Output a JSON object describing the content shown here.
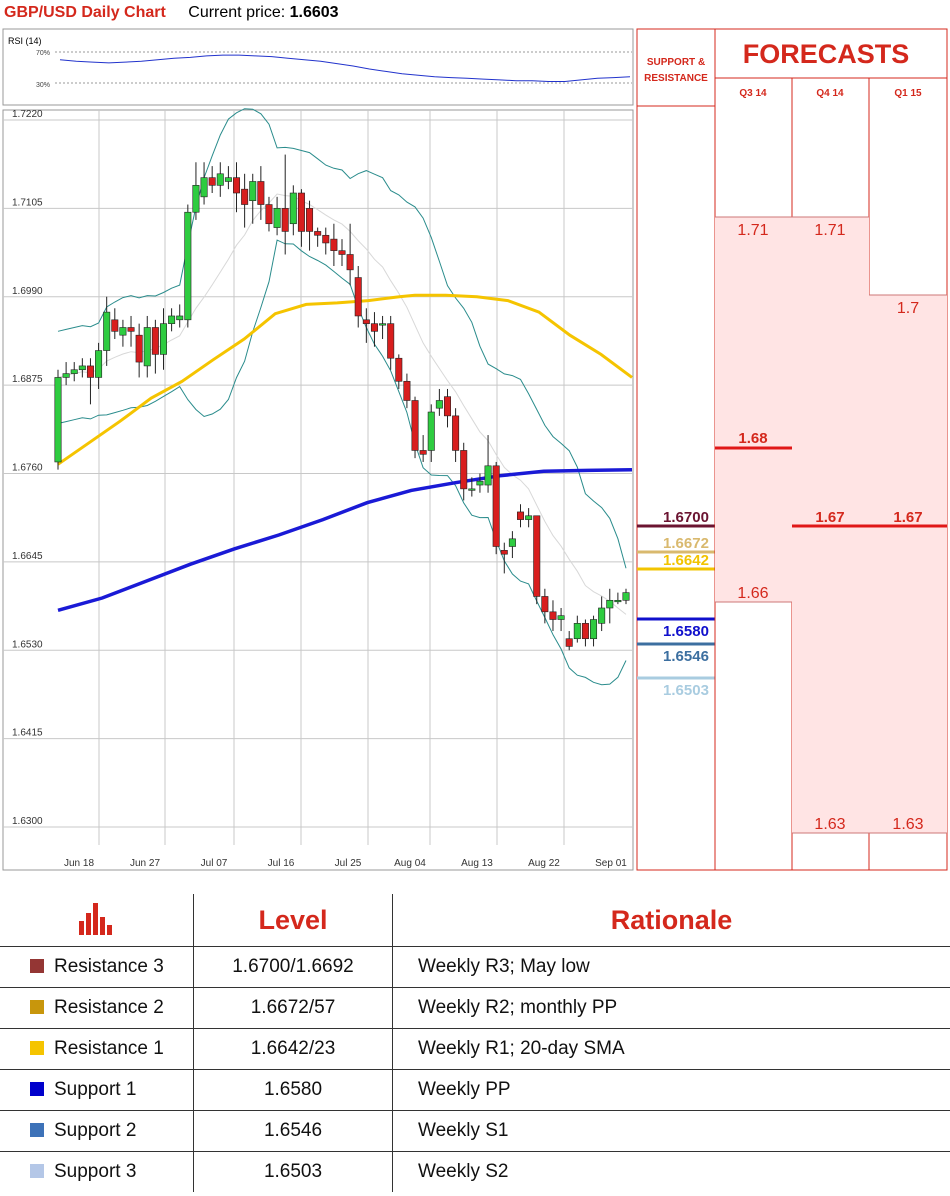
{
  "header": {
    "title": "GBP/USD Daily Chart",
    "current_price_label": "Current price:",
    "current_price_value": "1.6603"
  },
  "rsi": {
    "label": "RSI (14)",
    "level_70": "70%",
    "level_30": "30%"
  },
  "forecasts": {
    "title": "FORECASTS",
    "sr_label_line1": "SUPPORT &",
    "sr_label_line2": "RESISTANCE",
    "columns": [
      "Q3 14",
      "Q4 14",
      "Q1 15"
    ],
    "q3": {
      "high": "1.71",
      "mid": "1.68",
      "low": "1.66"
    },
    "q4": {
      "high": "1.71",
      "mid": "1.67",
      "low": "1.63"
    },
    "q1": {
      "high": "1.7",
      "mid": "1.67",
      "low": "1.63"
    }
  },
  "sr_levels": [
    {
      "value": "1.6700",
      "color": "#6b1431"
    },
    {
      "value": "1.6672",
      "color": "#d9b96e"
    },
    {
      "value": "1.6642",
      "color": "#f2c400"
    },
    {
      "value": "1.6580",
      "color": "#1010cc"
    },
    {
      "value": "1.6546",
      "color": "#3c6fa0"
    },
    {
      "value": "1.6503",
      "color": "#a9cce0"
    }
  ],
  "table": {
    "level_header": "Level",
    "rationale_header": "Rationale",
    "rows": [
      {
        "name": "Resistance 3",
        "level": "1.6700/1.6692",
        "rationale": "Weekly R3; May low",
        "color": "#943634"
      },
      {
        "name": "Resistance 2",
        "level": "1.6672/57",
        "rationale": "Weekly R2; monthly PP",
        "color": "#c8960c"
      },
      {
        "name": "Resistance 1",
        "level": "1.6642/23",
        "rationale": "Weekly R1; 20-day SMA",
        "color": "#f5c400"
      },
      {
        "name": "Support 1",
        "level": "1.6580",
        "rationale": "Weekly PP",
        "color": "#0000cc"
      },
      {
        "name": "Support 2",
        "level": "1.6546",
        "rationale": "Weekly S1",
        "color": "#3d72b8"
      },
      {
        "name": "Support 3",
        "level": "1.6503",
        "rationale": "Weekly S2",
        "color": "#b4c7e7"
      }
    ]
  },
  "chart_data": {
    "type": "candlestick",
    "ylim": [
      1.63,
      1.722
    ],
    "y_ticks": [
      "1.7220",
      "1.7105",
      "1.6990",
      "1.6875",
      "1.6760",
      "1.6645",
      "1.6530",
      "1.6415",
      "1.6300"
    ],
    "x_ticks": [
      "Jun 18",
      "Jun 27",
      "Jul 07",
      "Jul 16",
      "Jul 25",
      "Aug 04",
      "Aug 13",
      "Aug 22",
      "Sep 01"
    ],
    "colors": {
      "up": "#2ecc40",
      "down": "#d81e1e",
      "sma55": "#f5c400",
      "sma200": "#1a1ad6",
      "bollinger": "#2a8c8c",
      "sma20": "#d8d8d8",
      "rsi": "#2233cc"
    },
    "candles": [
      [
        1.6775,
        1.6885,
        1.6765,
        1.6895
      ],
      [
        1.6885,
        1.689,
        1.6875,
        1.6905
      ],
      [
        1.689,
        1.6895,
        1.688,
        1.6905
      ],
      [
        1.6895,
        1.69,
        1.6885,
        1.691
      ],
      [
        1.69,
        1.6885,
        1.685,
        1.691
      ],
      [
        1.6885,
        1.692,
        1.687,
        1.693
      ],
      [
        1.692,
        1.697,
        1.69,
        1.699
      ],
      [
        1.696,
        1.6945,
        1.6935,
        1.6975
      ],
      [
        1.694,
        1.695,
        1.6925,
        1.696
      ],
      [
        1.695,
        1.6945,
        1.6925,
        1.6965
      ],
      [
        1.694,
        1.6905,
        1.6885,
        1.6955
      ],
      [
        1.69,
        1.695,
        1.6885,
        1.6965
      ],
      [
        1.695,
        1.6915,
        1.689,
        1.696
      ],
      [
        1.6915,
        1.6955,
        1.6895,
        1.6975
      ],
      [
        1.6955,
        1.6965,
        1.6945,
        1.6975
      ],
      [
        1.696,
        1.6965,
        1.695,
        1.698
      ],
      [
        1.696,
        1.71,
        1.695,
        1.711
      ],
      [
        1.71,
        1.7135,
        1.709,
        1.7165
      ],
      [
        1.712,
        1.7145,
        1.711,
        1.7165
      ],
      [
        1.7145,
        1.7135,
        1.7125,
        1.716
      ],
      [
        1.7135,
        1.715,
        1.712,
        1.7165
      ],
      [
        1.714,
        1.7145,
        1.713,
        1.716
      ],
      [
        1.7145,
        1.7125,
        1.71,
        1.7165
      ],
      [
        1.713,
        1.711,
        1.708,
        1.715
      ],
      [
        1.7115,
        1.714,
        1.7085,
        1.715
      ],
      [
        1.714,
        1.711,
        1.709,
        1.716
      ],
      [
        1.711,
        1.7085,
        1.7075,
        1.712
      ],
      [
        1.708,
        1.7105,
        1.707,
        1.712
      ],
      [
        1.7105,
        1.7075,
        1.7045,
        1.7175
      ],
      [
        1.7085,
        1.7125,
        1.707,
        1.7135
      ],
      [
        1.7125,
        1.7075,
        1.7055,
        1.713
      ],
      [
        1.7105,
        1.7075,
        1.705,
        1.7115
      ],
      [
        1.7075,
        1.707,
        1.7055,
        1.708
      ],
      [
        1.707,
        1.706,
        1.7045,
        1.708
      ],
      [
        1.7065,
        1.705,
        1.703,
        1.7085
      ],
      [
        1.705,
        1.7045,
        1.703,
        1.7065
      ],
      [
        1.7045,
        1.7025,
        1.7005,
        1.7085
      ],
      [
        1.7015,
        1.6965,
        1.695,
        1.703
      ],
      [
        1.696,
        1.6955,
        1.693,
        1.6975
      ],
      [
        1.6955,
        1.6945,
        1.6925,
        1.697
      ],
      [
        1.6955,
        1.6955,
        1.6935,
        1.6965
      ],
      [
        1.6955,
        1.691,
        1.6895,
        1.6965
      ],
      [
        1.691,
        1.688,
        1.687,
        1.6915
      ],
      [
        1.688,
        1.6855,
        1.6845,
        1.689
      ],
      [
        1.6855,
        1.679,
        1.678,
        1.686
      ],
      [
        1.679,
        1.6785,
        1.6775,
        1.681
      ],
      [
        1.679,
        1.684,
        1.6775,
        1.685
      ],
      [
        1.6845,
        1.6855,
        1.6835,
        1.687
      ],
      [
        1.686,
        1.6835,
        1.682,
        1.687
      ],
      [
        1.6835,
        1.679,
        1.6775,
        1.6845
      ],
      [
        1.679,
        1.674,
        1.6725,
        1.68
      ],
      [
        1.674,
        1.674,
        1.673,
        1.6755
      ],
      [
        1.6745,
        1.675,
        1.6735,
        1.676
      ],
      [
        1.6745,
        1.677,
        1.6735,
        1.681
      ],
      [
        1.677,
        1.6665,
        1.6655,
        1.6775
      ],
      [
        1.666,
        1.6655,
        1.663,
        1.667
      ],
      [
        1.6665,
        1.6675,
        1.665,
        1.6685
      ],
      [
        1.671,
        1.67,
        1.669,
        1.672
      ],
      [
        1.67,
        1.6705,
        1.669,
        1.6715
      ],
      [
        1.6705,
        1.66,
        1.659,
        1.6705
      ],
      [
        1.66,
        1.658,
        1.6565,
        1.661
      ],
      [
        1.658,
        1.657,
        1.6555,
        1.6595
      ],
      [
        1.657,
        1.6575,
        1.6555,
        1.6585
      ],
      [
        1.6545,
        1.6535,
        1.653,
        1.6555
      ],
      [
        1.6545,
        1.6565,
        1.654,
        1.6575
      ],
      [
        1.6565,
        1.6545,
        1.6535,
        1.657
      ],
      [
        1.6545,
        1.657,
        1.6535,
        1.6575
      ],
      [
        1.6565,
        1.6585,
        1.6555,
        1.66
      ],
      [
        1.6585,
        1.6595,
        1.6565,
        1.661
      ],
      [
        1.6595,
        1.6595,
        1.659,
        1.6605
      ],
      [
        1.6595,
        1.6605,
        1.659,
        1.661
      ]
    ],
    "sma55": [
      [
        0,
        1.6772
      ],
      [
        10,
        1.68
      ],
      [
        20,
        1.6828
      ],
      [
        30,
        1.6858
      ],
      [
        40,
        1.688
      ],
      [
        50,
        1.6908
      ],
      [
        60,
        1.6935
      ],
      [
        70,
        1.6968
      ],
      [
        80,
        1.698
      ],
      [
        90,
        1.6982
      ],
      [
        100,
        1.6985
      ],
      [
        110,
        1.699
      ],
      [
        115,
        1.6992
      ],
      [
        125,
        1.6992
      ],
      [
        135,
        1.699
      ],
      [
        145,
        1.6985
      ],
      [
        155,
        1.697
      ],
      [
        165,
        1.694
      ],
      [
        175,
        1.6915
      ],
      [
        185,
        1.6885
      ]
    ],
    "sma200": [
      [
        0,
        1.6582
      ],
      [
        20,
        1.6598
      ],
      [
        40,
        1.662
      ],
      [
        60,
        1.6642
      ],
      [
        80,
        1.6662
      ],
      [
        100,
        1.668
      ],
      [
        120,
        1.67
      ],
      [
        140,
        1.6722
      ],
      [
        160,
        1.6738
      ],
      [
        180,
        1.6748
      ],
      [
        200,
        1.6757
      ],
      [
        220,
        1.6763
      ],
      [
        240,
        1.6764
      ],
      [
        260,
        1.6765
      ]
    ],
    "rsi_series": [
      60,
      58,
      57,
      56,
      57,
      58,
      60,
      62,
      63,
      65,
      66,
      66,
      65,
      64,
      62,
      60,
      58,
      55,
      52,
      48,
      45,
      42,
      40,
      38,
      37,
      36,
      35,
      34,
      33,
      33,
      32,
      32,
      34,
      36,
      37,
      38
    ]
  }
}
